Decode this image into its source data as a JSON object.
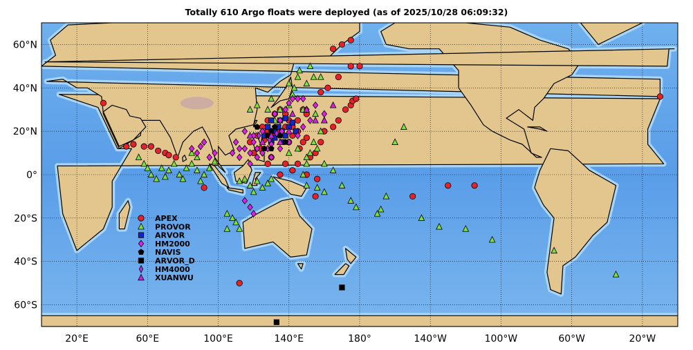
{
  "title": "Totally 610 Argo floats were deployed (as of 2025/10/28 06:09:32)",
  "lon_labels": [
    "20°E",
    "60°E",
    "100°E",
    "140°E",
    "180°",
    "140°W",
    "100°W",
    "60°W",
    "20°W"
  ],
  "lat_labels": [
    "60°N",
    "40°N",
    "20°N",
    "0°",
    "20°S",
    "40°S",
    "60°S"
  ],
  "legend": [
    {
      "label": "APEX",
      "marker": "circle",
      "color": "#e8202a"
    },
    {
      "label": "PROVOR",
      "marker": "triangle",
      "color": "#7ee03c"
    },
    {
      "label": "ARVOR",
      "marker": "square",
      "color": "#1026c8"
    },
    {
      "label": "HM2000",
      "marker": "diamond",
      "color": "#e020e8"
    },
    {
      "label": "NAVIS",
      "marker": "pentagon",
      "color": "#000000"
    },
    {
      "label": "ARVOR_D",
      "marker": "square",
      "color": "#000000"
    },
    {
      "label": "HM4000",
      "marker": "thin-diamond",
      "color": "#b030f0"
    },
    {
      "label": "XUANWU",
      "marker": "triangle",
      "color": "#d020e0"
    }
  ],
  "colors": {
    "ocean_deep": "#5a9de8",
    "ocean_shallow": "#a8d4f5",
    "land": "#e2c68e",
    "grid": "#000000"
  },
  "map_data": {
    "projection": "equirectangular",
    "lon_range": [
      0,
      360
    ],
    "lat_range": [
      -70,
      70
    ],
    "floats": {
      "APEX": [
        [
          -10,
          36
        ],
        [
          35,
          33
        ],
        [
          48,
          13
        ],
        [
          52,
          14
        ],
        [
          58,
          13
        ],
        [
          62,
          13
        ],
        [
          66,
          11
        ],
        [
          70,
          10
        ],
        [
          72,
          9
        ],
        [
          76,
          8
        ],
        [
          92,
          -6
        ],
        [
          112,
          -50
        ],
        [
          122,
          18
        ],
        [
          125,
          22
        ],
        [
          128,
          20
        ],
        [
          130,
          15
        ],
        [
          132,
          18
        ],
        [
          135,
          20
        ],
        [
          138,
          22
        ],
        [
          140,
          25
        ],
        [
          142,
          18
        ],
        [
          145,
          20
        ],
        [
          148,
          15
        ],
        [
          150,
          17
        ],
        [
          155,
          10
        ],
        [
          158,
          15
        ],
        [
          160,
          20
        ],
        [
          165,
          22
        ],
        [
          168,
          25
        ],
        [
          172,
          30
        ],
        [
          175,
          32
        ],
        [
          176,
          34
        ],
        [
          178,
          35
        ],
        [
          180,
          50
        ],
        [
          175,
          50
        ],
        [
          168,
          45
        ],
        [
          162,
          40
        ],
        [
          158,
          38
        ],
        [
          150,
          28
        ],
        [
          148,
          30
        ],
        [
          145,
          25
        ],
        [
          142,
          22
        ],
        [
          138,
          28
        ],
        [
          135,
          30
        ],
        [
          132,
          28
        ],
        [
          128,
          25
        ],
        [
          126,
          16
        ],
        [
          124,
          12
        ],
        [
          130,
          8
        ],
        [
          138,
          5
        ],
        [
          142,
          2
        ],
        [
          145,
          5
        ],
        [
          150,
          0
        ],
        [
          155,
          -10
        ],
        [
          210,
          -10
        ],
        [
          230,
          -5
        ],
        [
          245,
          -5
        ],
        [
          120,
          10
        ],
        [
          118,
          15
        ],
        [
          140,
          15
        ],
        [
          146,
          12
        ],
        [
          152,
          8
        ],
        [
          156,
          -2
        ],
        [
          128,
          5
        ],
        [
          135,
          0
        ],
        [
          165,
          58
        ],
        [
          170,
          60
        ],
        [
          175,
          62
        ]
      ],
      "PROVOR": [
        [
          55,
          8
        ],
        [
          58,
          5
        ],
        [
          60,
          3
        ],
        [
          62,
          0
        ],
        [
          65,
          -2
        ],
        [
          68,
          3
        ],
        [
          70,
          -1
        ],
        [
          72,
          2
        ],
        [
          75,
          5
        ],
        [
          78,
          0
        ],
        [
          80,
          -2
        ],
        [
          82,
          3
        ],
        [
          85,
          5
        ],
        [
          88,
          2
        ],
        [
          90,
          -3
        ],
        [
          92,
          0
        ],
        [
          95,
          3
        ],
        [
          98,
          6
        ],
        [
          85,
          10
        ],
        [
          88,
          8
        ],
        [
          112,
          -3
        ],
        [
          115,
          -2
        ],
        [
          118,
          -5
        ],
        [
          120,
          -8
        ],
        [
          122,
          -3
        ],
        [
          125,
          -6
        ],
        [
          128,
          -4
        ],
        [
          130,
          -2
        ],
        [
          105,
          -18
        ],
        [
          108,
          -20
        ],
        [
          110,
          -22
        ],
        [
          112,
          -25
        ],
        [
          105,
          -25
        ],
        [
          140,
          42
        ],
        [
          143,
          40
        ],
        [
          145,
          45
        ],
        [
          146,
          48
        ],
        [
          142,
          37
        ],
        [
          150,
          42
        ],
        [
          154,
          45
        ],
        [
          158,
          45
        ],
        [
          152,
          50
        ],
        [
          130,
          35
        ],
        [
          135,
          30
        ],
        [
          140,
          32
        ],
        [
          148,
          30
        ],
        [
          155,
          28
        ],
        [
          160,
          25
        ],
        [
          158,
          20
        ],
        [
          154,
          15
        ],
        [
          152,
          10
        ],
        [
          150,
          5
        ],
        [
          148,
          0
        ],
        [
          150,
          -5
        ],
        [
          156,
          -6
        ],
        [
          160,
          -8
        ],
        [
          170,
          -5
        ],
        [
          175,
          -12
        ],
        [
          178,
          -15
        ],
        [
          190,
          -18
        ],
        [
          192,
          -16
        ],
        [
          195,
          -10
        ],
        [
          200,
          15
        ],
        [
          205,
          22
        ],
        [
          215,
          -20
        ],
        [
          225,
          -24
        ],
        [
          240,
          -25
        ],
        [
          255,
          -30
        ],
        [
          290,
          -35
        ],
        [
          325,
          -46
        ],
        [
          150,
          8
        ],
        [
          156,
          12
        ],
        [
          145,
          12
        ],
        [
          160,
          5
        ],
        [
          165,
          2
        ],
        [
          140,
          10
        ],
        [
          132,
          25
        ],
        [
          128,
          30
        ],
        [
          122,
          32
        ],
        [
          118,
          30
        ]
      ],
      "ARVOR": [
        [
          130,
          15
        ],
        [
          132,
          20
        ],
        [
          134,
          22
        ],
        [
          136,
          20
        ],
        [
          138,
          18
        ],
        [
          140,
          22
        ],
        [
          142,
          24
        ],
        [
          144,
          20
        ],
        [
          128,
          22
        ],
        [
          126,
          18
        ],
        [
          135,
          25
        ],
        [
          138,
          26
        ],
        [
          130,
          25
        ],
        [
          132,
          17
        ],
        [
          136,
          15
        ]
      ],
      "HM2000": [
        [
          85,
          12
        ],
        [
          88,
          10
        ],
        [
          90,
          13
        ],
        [
          92,
          15
        ],
        [
          95,
          8
        ],
        [
          98,
          10
        ],
        [
          112,
          8
        ],
        [
          115,
          12
        ],
        [
          118,
          10
        ],
        [
          120,
          15
        ],
        [
          122,
          12
        ],
        [
          125,
          10
        ],
        [
          128,
          12
        ],
        [
          130,
          14
        ],
        [
          115,
          -12
        ],
        [
          118,
          -15
        ],
        [
          120,
          -18
        ],
        [
          125,
          10
        ],
        [
          130,
          20
        ],
        [
          135,
          25
        ],
        [
          138,
          30
        ],
        [
          140,
          33
        ],
        [
          142,
          35
        ],
        [
          145,
          35
        ],
        [
          148,
          35
        ],
        [
          150,
          30
        ],
        [
          152,
          25
        ],
        [
          155,
          32
        ],
        [
          160,
          28
        ],
        [
          148,
          22
        ],
        [
          145,
          18
        ],
        [
          140,
          15
        ],
        [
          135,
          12
        ],
        [
          130,
          8
        ],
        [
          125,
          20
        ],
        [
          120,
          18
        ],
        [
          132,
          28
        ],
        [
          136,
          20
        ],
        [
          110,
          15
        ],
        [
          115,
          20
        ],
        [
          118,
          5
        ],
        [
          122,
          8
        ],
        [
          112,
          12
        ],
        [
          108,
          10
        ]
      ],
      "NAVIS": [
        [
          122,
          22
        ],
        [
          128,
          18
        ],
        [
          130,
          20
        ],
        [
          132,
          22
        ],
        [
          135,
          18
        ],
        [
          138,
          15
        ],
        [
          126,
          12
        ],
        [
          130,
          12
        ]
      ],
      "ARVOR_D": [
        [
          170,
          -52
        ],
        [
          133,
          -68
        ]
      ],
      "HM4000": [
        [
          123,
          18
        ],
        [
          129,
          16
        ],
        [
          133,
          19
        ]
      ],
      "XUANWU": [
        [
          118,
          18
        ],
        [
          125,
          15
        ],
        [
          130,
          18
        ],
        [
          142,
          28
        ],
        [
          150,
          30
        ],
        [
          155,
          25
        ],
        [
          160,
          25
        ],
        [
          165,
          32
        ],
        [
          140,
          20
        ],
        [
          135,
          15
        ]
      ]
    }
  }
}
